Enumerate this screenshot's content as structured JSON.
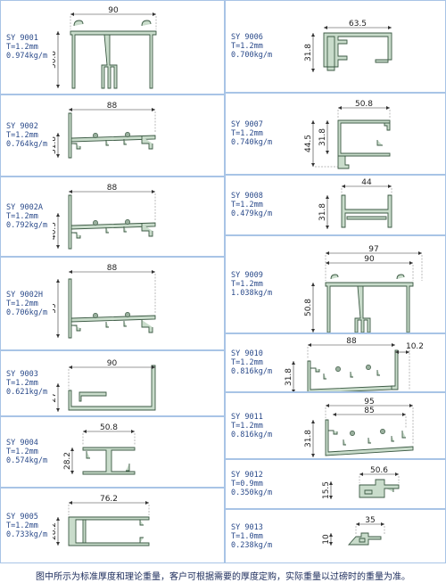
{
  "profiles": [
    {
      "code": "SY 9001",
      "thickness": "T=1.2mm",
      "weight": "0.974kg/m",
      "dims": [
        "90",
        "50.8"
      ]
    },
    {
      "code": "SY 9002",
      "thickness": "T=1.2mm",
      "weight": "0.764kg/m",
      "dims": [
        "88",
        "31.8"
      ]
    },
    {
      "code": "SY 9002A",
      "thickness": "T=1.2mm",
      "weight": "0.792kg/m",
      "dims": [
        "88",
        "40.5"
      ]
    },
    {
      "code": "SY 9002H",
      "thickness": "T=1.2mm",
      "weight": "0.706kg/m",
      "dims": [
        "88",
        "55"
      ]
    },
    {
      "code": "SY 9003",
      "thickness": "T=1.2mm",
      "weight": "0.621kg/m",
      "dims": [
        "90",
        "27"
      ]
    },
    {
      "code": "SY 9004",
      "thickness": "T=1.2mm",
      "weight": "0.574kg/m",
      "dims": [
        "50.8",
        "28.2"
      ]
    },
    {
      "code": "SY 9005",
      "thickness": "T=1.2mm",
      "weight": "0.733kg/m",
      "dims": [
        "76.2",
        "28.2"
      ]
    },
    {
      "code": "SY 9006",
      "thickness": "T=1.2mm",
      "weight": "0.700kg/m",
      "dims": [
        "63.5",
        "31.8"
      ]
    },
    {
      "code": "SY 9007",
      "thickness": "T=1.2mm",
      "weight": "0.740kg/m",
      "dims": [
        "50.8",
        "31.8",
        "44.5"
      ]
    },
    {
      "code": "SY 9008",
      "thickness": "T=1.2mm",
      "weight": "0.479kg/m",
      "dims": [
        "44",
        "31.8"
      ]
    },
    {
      "code": "SY 9009",
      "thickness": "T=1.2mm",
      "weight": "1.038kg/m",
      "dims": [
        "97",
        "90",
        "50.8"
      ]
    },
    {
      "code": "SY 9010",
      "thickness": "T=1.2mm",
      "weight": "0.816kg/m",
      "dims": [
        "88",
        "10.2",
        "31.8"
      ]
    },
    {
      "code": "SY 9011",
      "thickness": "T=1.2mm",
      "weight": "0.816kg/m",
      "dims": [
        "95",
        "85",
        "31.8"
      ]
    },
    {
      "code": "SY 9012",
      "thickness": "T=0.9mm",
      "weight": "0.350kg/m",
      "dims": [
        "50.6",
        "15.5"
      ]
    },
    {
      "code": "SY 9013",
      "thickness": "T=1.0mm",
      "weight": "0.238kg/m",
      "dims": [
        "35",
        "10"
      ]
    }
  ],
  "footer": "图中所示为标准厚度和理论重量，客户可根据需要的厚度定购，实际重量以过磅时的重量为准。"
}
